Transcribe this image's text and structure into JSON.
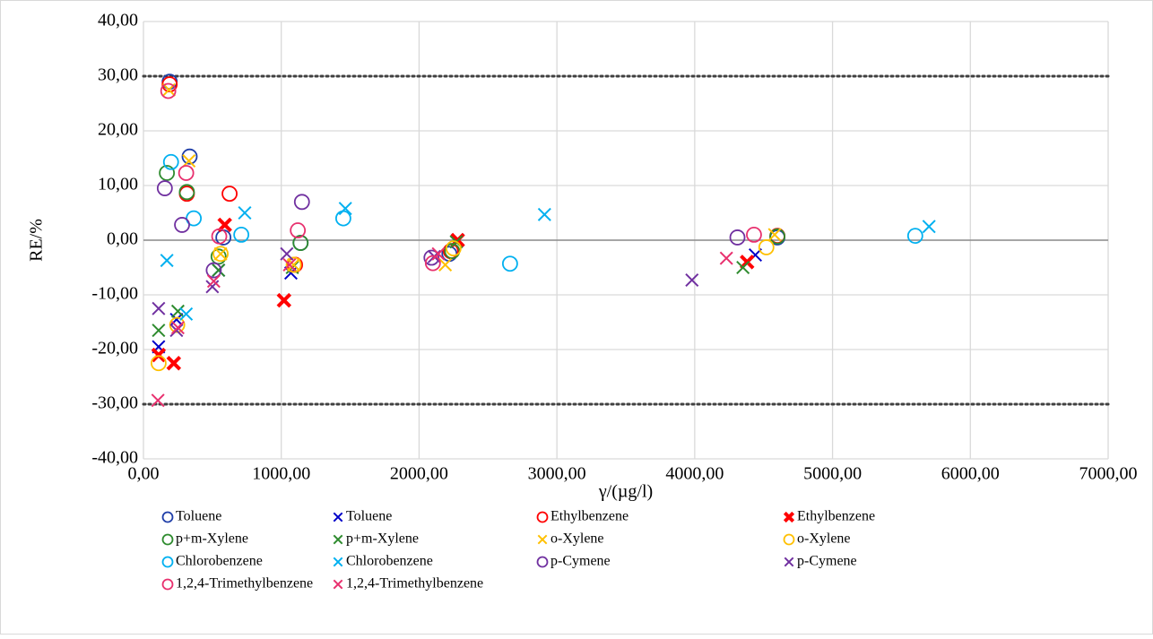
{
  "chart_data": {
    "type": "scatter",
    "xlabel": "γ/(µg/l)",
    "ylabel": "RE/%",
    "xlim": [
      0,
      7000
    ],
    "ylim": [
      -40,
      40
    ],
    "xticks": [
      {
        "value": 0,
        "label": "0,00"
      },
      {
        "value": 1000,
        "label": "1000,00"
      },
      {
        "value": 2000,
        "label": "2000,00"
      },
      {
        "value": 3000,
        "label": "3000,00"
      },
      {
        "value": 4000,
        "label": "4000,00"
      },
      {
        "value": 5000,
        "label": "5000,00"
      },
      {
        "value": 6000,
        "label": "6000,00"
      },
      {
        "value": 7000,
        "label": "7000,00"
      }
    ],
    "yticks": [
      {
        "value": 40,
        "label": "40,00"
      },
      {
        "value": 30,
        "label": "30,00"
      },
      {
        "value": 20,
        "label": "20,00"
      },
      {
        "value": 10,
        "label": "10,00"
      },
      {
        "value": 0,
        "label": "0,00"
      },
      {
        "value": -10,
        "label": "-10,00"
      },
      {
        "value": -20,
        "label": "-20,00"
      },
      {
        "value": -30,
        "label": "-30,00"
      },
      {
        "value": -40,
        "label": "-40,00"
      }
    ],
    "grid": true,
    "reference_lines": [
      30,
      -30
    ],
    "legend": "bottom",
    "series": [
      {
        "name": "Toluene",
        "marker": "circle",
        "color": "#1f3ea8",
        "x": [
          190,
          335,
          580,
          1140,
          2220,
          4600
        ],
        "y": [
          29,
          15.3,
          0.5,
          -0.5,
          -2.5,
          0.5
        ]
      },
      {
        "name": "Toluene",
        "marker": "cross",
        "color": "#0000c8",
        "x": [
          110,
          240,
          545,
          1070,
          2280,
          4440
        ],
        "y": [
          -19.5,
          -14.5,
          -5.5,
          -6,
          0,
          -2.7
        ]
      },
      {
        "name": "Ethylbenzene",
        "marker": "circle",
        "color": "#ff0000",
        "x": [
          190,
          315,
          625,
          1100,
          2230,
          4600
        ],
        "y": [
          28.5,
          8.5,
          8.5,
          -4.5,
          -2,
          0.8
        ]
      },
      {
        "name": "Ethylbenzene",
        "marker": "cross-bold",
        "color": "#ff0000",
        "x": [
          110,
          220,
          590,
          1020,
          2280,
          4380
        ],
        "y": [
          -21,
          -22.5,
          2.8,
          -11,
          0,
          -4
        ]
      },
      {
        "name": "p+m-Xylene",
        "marker": "circle",
        "color": "#2e8b2e",
        "x": [
          170,
          315,
          545,
          1140,
          2240,
          4600
        ],
        "y": [
          12.3,
          8.8,
          -3,
          -0.5,
          -2,
          0.7
        ]
      },
      {
        "name": "p+m-Xylene",
        "marker": "cross",
        "color": "#2e8b2e",
        "x": [
          110,
          250,
          545,
          1080,
          2270,
          4350
        ],
        "y": [
          -16.5,
          -13,
          -5.5,
          -5,
          -0.3,
          -5
        ]
      },
      {
        "name": "o-Xylene",
        "marker": "cross",
        "color": "#ffc000",
        "x": [
          185,
          330,
          560,
          1090,
          2190,
          4580
        ],
        "y": [
          27.5,
          14.5,
          -2.5,
          -4.5,
          -4.5,
          1
        ]
      },
      {
        "name": "o-Xylene",
        "marker": "circle",
        "color": "#ffc000",
        "x": [
          110,
          245,
          560,
          1090,
          2250,
          4520
        ],
        "y": [
          -22.5,
          -15.5,
          -2.5,
          -4.5,
          -1.5,
          -1.3
        ]
      },
      {
        "name": "Chlorobenzene",
        "marker": "circle",
        "color": "#00b0f0",
        "x": [
          200,
          365,
          710,
          1450,
          2660,
          5600
        ],
        "y": [
          14.3,
          4,
          1,
          4,
          -4.3,
          0.8
        ]
      },
      {
        "name": "Chlorobenzene",
        "marker": "cross",
        "color": "#00b0f0",
        "x": [
          170,
          310,
          735,
          1465,
          2910,
          5700
        ],
        "y": [
          -3.7,
          -13.5,
          5,
          5.8,
          4.7,
          2.5
        ]
      },
      {
        "name": "p-Cymene",
        "marker": "circle",
        "color": "#7030a0",
        "x": [
          155,
          280,
          510,
          1150,
          2090,
          4310
        ],
        "y": [
          9.5,
          2.8,
          -5.5,
          7,
          -3.2,
          0.5
        ]
      },
      {
        "name": "p-Cymene",
        "marker": "cross",
        "color": "#7030a0",
        "x": [
          110,
          240,
          500,
          1040,
          2110,
          3980
        ],
        "y": [
          -12.5,
          -16.5,
          -8.5,
          -2.5,
          -3,
          -7.3
        ]
      },
      {
        "name": "1,2,4-Trimethylbenzene",
        "marker": "circle",
        "color": "#e8306e",
        "x": [
          180,
          310,
          550,
          1120,
          2100,
          4430
        ],
        "y": [
          27.3,
          12.3,
          0.7,
          1.8,
          -4.2,
          1
        ]
      },
      {
        "name": "1,2,4-Trimethylbenzene",
        "marker": "cross",
        "color": "#e8306e",
        "x": [
          105,
          250,
          510,
          1060,
          2140,
          4230
        ],
        "y": [
          -29.3,
          -16,
          -7.5,
          -4.5,
          -2.5,
          -3.3
        ]
      }
    ]
  }
}
